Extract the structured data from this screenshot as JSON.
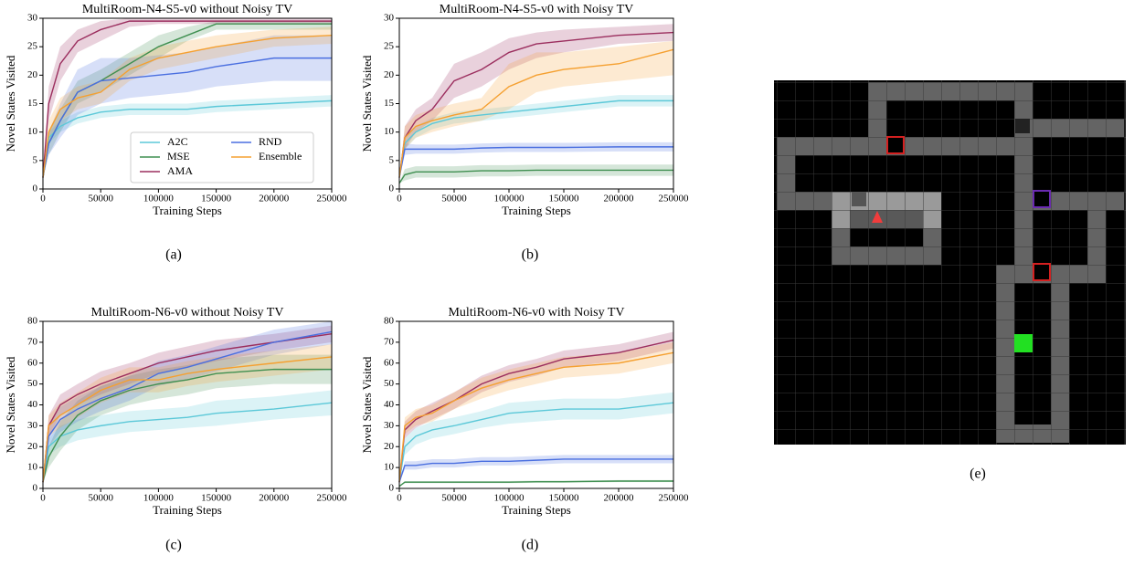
{
  "chart_data": [
    {
      "type": "line",
      "title": "MultiRoom-N4-S5-v0 without Noisy TV",
      "caption": "(a)",
      "xlabel": "Training Steps",
      "ylabel": "Novel States Visited",
      "x": [
        0,
        5000,
        15000,
        30000,
        50000,
        75000,
        100000,
        125000,
        150000,
        200000,
        250000
      ],
      "xlim": [
        0,
        250000
      ],
      "xticks": [
        0,
        50000,
        100000,
        150000,
        200000,
        250000
      ],
      "ylim": [
        0,
        30
      ],
      "yticks": [
        0,
        5,
        10,
        15,
        20,
        25,
        30
      ],
      "legend": "lower right",
      "series": [
        {
          "name": "A2C",
          "color": "#5bc8d8",
          "values": [
            2,
            9,
            11,
            12.5,
            13.5,
            14,
            14,
            14,
            14.5,
            15,
            15.5
          ],
          "lower": [
            2,
            8,
            10,
            11.5,
            12.5,
            13,
            13,
            13,
            13.5,
            14,
            14.5
          ],
          "upper": [
            2,
            10,
            12,
            13.5,
            14.5,
            15,
            15,
            15,
            15.5,
            16,
            16.5
          ]
        },
        {
          "name": "MSE",
          "color": "#3f8f50",
          "values": [
            2,
            8,
            12,
            17,
            19,
            22,
            25,
            27,
            29,
            29,
            29
          ],
          "lower": [
            2,
            6,
            10,
            15,
            17,
            20,
            23,
            26,
            28,
            28,
            28
          ],
          "upper": [
            2,
            10,
            14,
            19,
            21,
            24,
            27,
            28.5,
            29.5,
            29.5,
            29.5
          ]
        },
        {
          "name": "AMA",
          "color": "#9b2e5e",
          "values": [
            2,
            15,
            22,
            26,
            28,
            29.5,
            29.5,
            29.5,
            29.5,
            29.5,
            29.5
          ],
          "lower": [
            2,
            12,
            19,
            24,
            26,
            28.5,
            29,
            29,
            29,
            29,
            29
          ],
          "upper": [
            2,
            18,
            25,
            28,
            29.5,
            30,
            30,
            30,
            30,
            30,
            30
          ]
        },
        {
          "name": "RND",
          "color": "#4a6fe0",
          "values": [
            2,
            8,
            12,
            17,
            19,
            19.5,
            20,
            20.5,
            21.5,
            23,
            23
          ],
          "lower": [
            2,
            6,
            9,
            13,
            15,
            16,
            16.5,
            17,
            18,
            19,
            19
          ],
          "upper": [
            2,
            10,
            15,
            21,
            23,
            23,
            23.5,
            24,
            25,
            27,
            27
          ]
        },
        {
          "name": "Ensemble",
          "color": "#f5a030",
          "values": [
            2,
            10,
            14,
            16,
            17,
            21,
            23,
            24,
            25,
            26.5,
            27
          ],
          "lower": [
            2,
            8,
            12,
            14,
            15,
            19,
            21,
            22,
            23,
            25,
            25.5
          ],
          "upper": [
            2,
            12,
            16,
            18,
            19,
            23,
            25,
            26,
            27,
            28,
            28.5
          ]
        }
      ]
    },
    {
      "type": "line",
      "title": "MultiRoom-N4-S5-v0 with Noisy TV",
      "caption": "(b)",
      "xlabel": "Training Steps",
      "ylabel": "Novel States Visited",
      "x": [
        0,
        5000,
        15000,
        30000,
        50000,
        75000,
        100000,
        125000,
        150000,
        200000,
        250000
      ],
      "xlim": [
        0,
        250000
      ],
      "xticks": [
        0,
        50000,
        100000,
        150000,
        200000,
        250000
      ],
      "ylim": [
        0,
        30
      ],
      "yticks": [
        0,
        5,
        10,
        15,
        20,
        25,
        30
      ],
      "series": [
        {
          "color": "#5bc8d8",
          "values": [
            2,
            8,
            10,
            11.5,
            12.5,
            13,
            13.5,
            14,
            14.5,
            15.5,
            15.5
          ],
          "lower": [
            2,
            7,
            9,
            10.5,
            11.5,
            12,
            12.5,
            13,
            13.5,
            14.5,
            14.5
          ],
          "upper": [
            2,
            9,
            11,
            12.5,
            13.5,
            14,
            14.5,
            15,
            15.5,
            16.5,
            16.5
          ]
        },
        {
          "color": "#3f8f50",
          "values": [
            1,
            2.5,
            3,
            3,
            3,
            3.2,
            3.2,
            3.3,
            3.3,
            3.3,
            3.3
          ],
          "lower": [
            1,
            1.5,
            2,
            2,
            2,
            2.2,
            2.2,
            2.3,
            2.3,
            2.3,
            2.3
          ],
          "upper": [
            1,
            3.5,
            4,
            4,
            4,
            4.2,
            4.2,
            4.3,
            4.3,
            4.3,
            4.3
          ]
        },
        {
          "color": "#9b2e5e",
          "values": [
            2,
            9,
            12,
            14,
            19,
            21,
            24,
            25.5,
            26,
            27,
            27.5
          ],
          "lower": [
            2,
            7,
            10,
            12,
            16,
            18,
            21,
            23,
            24,
            25.5,
            26
          ],
          "upper": [
            2,
            11,
            14,
            16,
            22,
            24,
            26.5,
            27.5,
            28,
            28.5,
            29
          ]
        },
        {
          "color": "#4a6fe0",
          "values": [
            2,
            7,
            7,
            7,
            7,
            7.2,
            7.3,
            7.3,
            7.3,
            7.4,
            7.4
          ],
          "lower": [
            2,
            6,
            6.2,
            6.2,
            6.2,
            6.4,
            6.5,
            6.5,
            6.5,
            6.6,
            6.6
          ],
          "upper": [
            2,
            8,
            7.8,
            7.8,
            7.8,
            8,
            8.1,
            8.1,
            8.1,
            8.2,
            8.2
          ]
        },
        {
          "color": "#f5a030",
          "values": [
            2,
            9,
            11,
            12,
            13,
            14,
            18,
            20,
            21,
            22,
            24.5
          ],
          "lower": [
            2,
            7,
            9,
            10,
            11,
            12,
            14,
            17,
            18,
            19,
            20
          ],
          "upper": [
            2,
            11,
            13,
            14,
            15,
            16,
            22,
            24,
            24,
            25,
            26
          ]
        }
      ]
    },
    {
      "type": "line",
      "title": "MultiRoom-N6-v0 without Noisy TV",
      "caption": "(c)",
      "xlabel": "Training Steps",
      "ylabel": "Novel States Visited",
      "x": [
        0,
        5000,
        15000,
        30000,
        50000,
        75000,
        100000,
        125000,
        150000,
        200000,
        250000
      ],
      "xlim": [
        0,
        250000
      ],
      "xticks": [
        0,
        50000,
        100000,
        150000,
        200000,
        250000
      ],
      "ylim": [
        0,
        80
      ],
      "yticks": [
        0,
        10,
        20,
        30,
        40,
        50,
        60,
        70,
        80
      ],
      "series": [
        {
          "color": "#5bc8d8",
          "values": [
            3,
            20,
            25,
            28,
            30,
            32,
            33,
            34,
            36,
            38,
            41
          ],
          "lower": [
            3,
            16,
            20,
            23,
            25,
            27,
            28,
            29,
            30,
            33,
            35
          ],
          "upper": [
            3,
            24,
            30,
            33,
            35,
            37,
            38,
            39,
            42,
            44,
            47
          ]
        },
        {
          "color": "#3f8f50",
          "values": [
            3,
            15,
            25,
            35,
            42,
            47,
            50,
            52,
            55,
            57,
            57
          ],
          "lower": [
            3,
            10,
            18,
            28,
            35,
            40,
            43,
            45,
            48,
            50,
            50
          ],
          "upper": [
            3,
            20,
            32,
            42,
            49,
            54,
            57,
            59,
            62,
            64,
            64
          ]
        },
        {
          "color": "#9b2e5e",
          "values": [
            3,
            30,
            40,
            45,
            50,
            55,
            60,
            63,
            66,
            70,
            74
          ],
          "lower": [
            3,
            25,
            35,
            40,
            45,
            50,
            55,
            58,
            61,
            66,
            70
          ],
          "upper": [
            3,
            35,
            45,
            50,
            56,
            60,
            65,
            68,
            71,
            74,
            78
          ]
        },
        {
          "color": "#4a6fe0",
          "values": [
            3,
            25,
            33,
            38,
            43,
            48,
            55,
            58,
            62,
            70,
            75
          ],
          "lower": [
            3,
            20,
            27,
            32,
            37,
            42,
            49,
            52,
            56,
            64,
            69
          ],
          "upper": [
            3,
            30,
            39,
            44,
            49,
            54,
            61,
            64,
            68,
            76,
            80
          ]
        },
        {
          "color": "#f5a030",
          "values": [
            3,
            30,
            35,
            40,
            47,
            52,
            52,
            55,
            57,
            60,
            63
          ],
          "lower": [
            3,
            25,
            29,
            34,
            41,
            46,
            46,
            49,
            51,
            54,
            57
          ],
          "upper": [
            3,
            35,
            41,
            46,
            53,
            58,
            58,
            61,
            63,
            66,
            69
          ]
        }
      ]
    },
    {
      "type": "line",
      "title": "MultiRoom-N6-v0 with Noisy TV",
      "caption": "(d)",
      "xlabel": "Training Steps",
      "ylabel": "Novel States Visited",
      "x": [
        0,
        5000,
        15000,
        30000,
        50000,
        75000,
        100000,
        125000,
        150000,
        200000,
        250000
      ],
      "xlim": [
        0,
        250000
      ],
      "xticks": [
        0,
        50000,
        100000,
        150000,
        200000,
        250000
      ],
      "ylim": [
        0,
        80
      ],
      "yticks": [
        0,
        10,
        20,
        30,
        40,
        50,
        60,
        70,
        80
      ],
      "series": [
        {
          "color": "#5bc8d8",
          "values": [
            3,
            20,
            25,
            28,
            30,
            33,
            36,
            37,
            38,
            38,
            41
          ],
          "lower": [
            3,
            16,
            21,
            24,
            26,
            29,
            31,
            32,
            33,
            33,
            36
          ],
          "upper": [
            3,
            24,
            29,
            32,
            34,
            37,
            41,
            42,
            43,
            43,
            46
          ]
        },
        {
          "color": "#3f8f50",
          "values": [
            1,
            3,
            3,
            3,
            3,
            3,
            3,
            3.2,
            3.2,
            3.5,
            3.5
          ],
          "lower": [
            1,
            2.5,
            2.5,
            2.5,
            2.5,
            2.5,
            2.5,
            2.7,
            2.7,
            3,
            3
          ],
          "upper": [
            1,
            3.5,
            3.5,
            3.5,
            3.5,
            3.5,
            3.5,
            3.7,
            3.7,
            4,
            4
          ]
        },
        {
          "color": "#9b2e5e",
          "values": [
            3,
            28,
            33,
            37,
            42,
            50,
            55,
            58,
            62,
            65,
            71
          ],
          "lower": [
            3,
            24,
            29,
            33,
            38,
            46,
            51,
            54,
            58,
            61,
            67
          ],
          "upper": [
            3,
            32,
            37,
            41,
            46,
            54,
            59,
            62,
            66,
            69,
            75
          ]
        },
        {
          "color": "#4a6fe0",
          "values": [
            3,
            11,
            11,
            12,
            12,
            13,
            13,
            13.5,
            14,
            14,
            14
          ],
          "lower": [
            3,
            9,
            9,
            10,
            10,
            11,
            11,
            11.5,
            12,
            12,
            12
          ],
          "upper": [
            3,
            13,
            13,
            14,
            14,
            15,
            15,
            15.5,
            16,
            16,
            16
          ]
        },
        {
          "color": "#f5a030",
          "values": [
            3,
            30,
            34,
            36,
            42,
            48,
            52,
            55,
            58,
            60,
            65
          ],
          "lower": [
            3,
            26,
            30,
            32,
            38,
            43,
            47,
            50,
            53,
            55,
            60
          ],
          "upper": [
            3,
            34,
            38,
            40,
            46,
            53,
            57,
            60,
            63,
            65,
            70
          ]
        }
      ]
    }
  ],
  "image": {
    "caption": "(e)"
  }
}
